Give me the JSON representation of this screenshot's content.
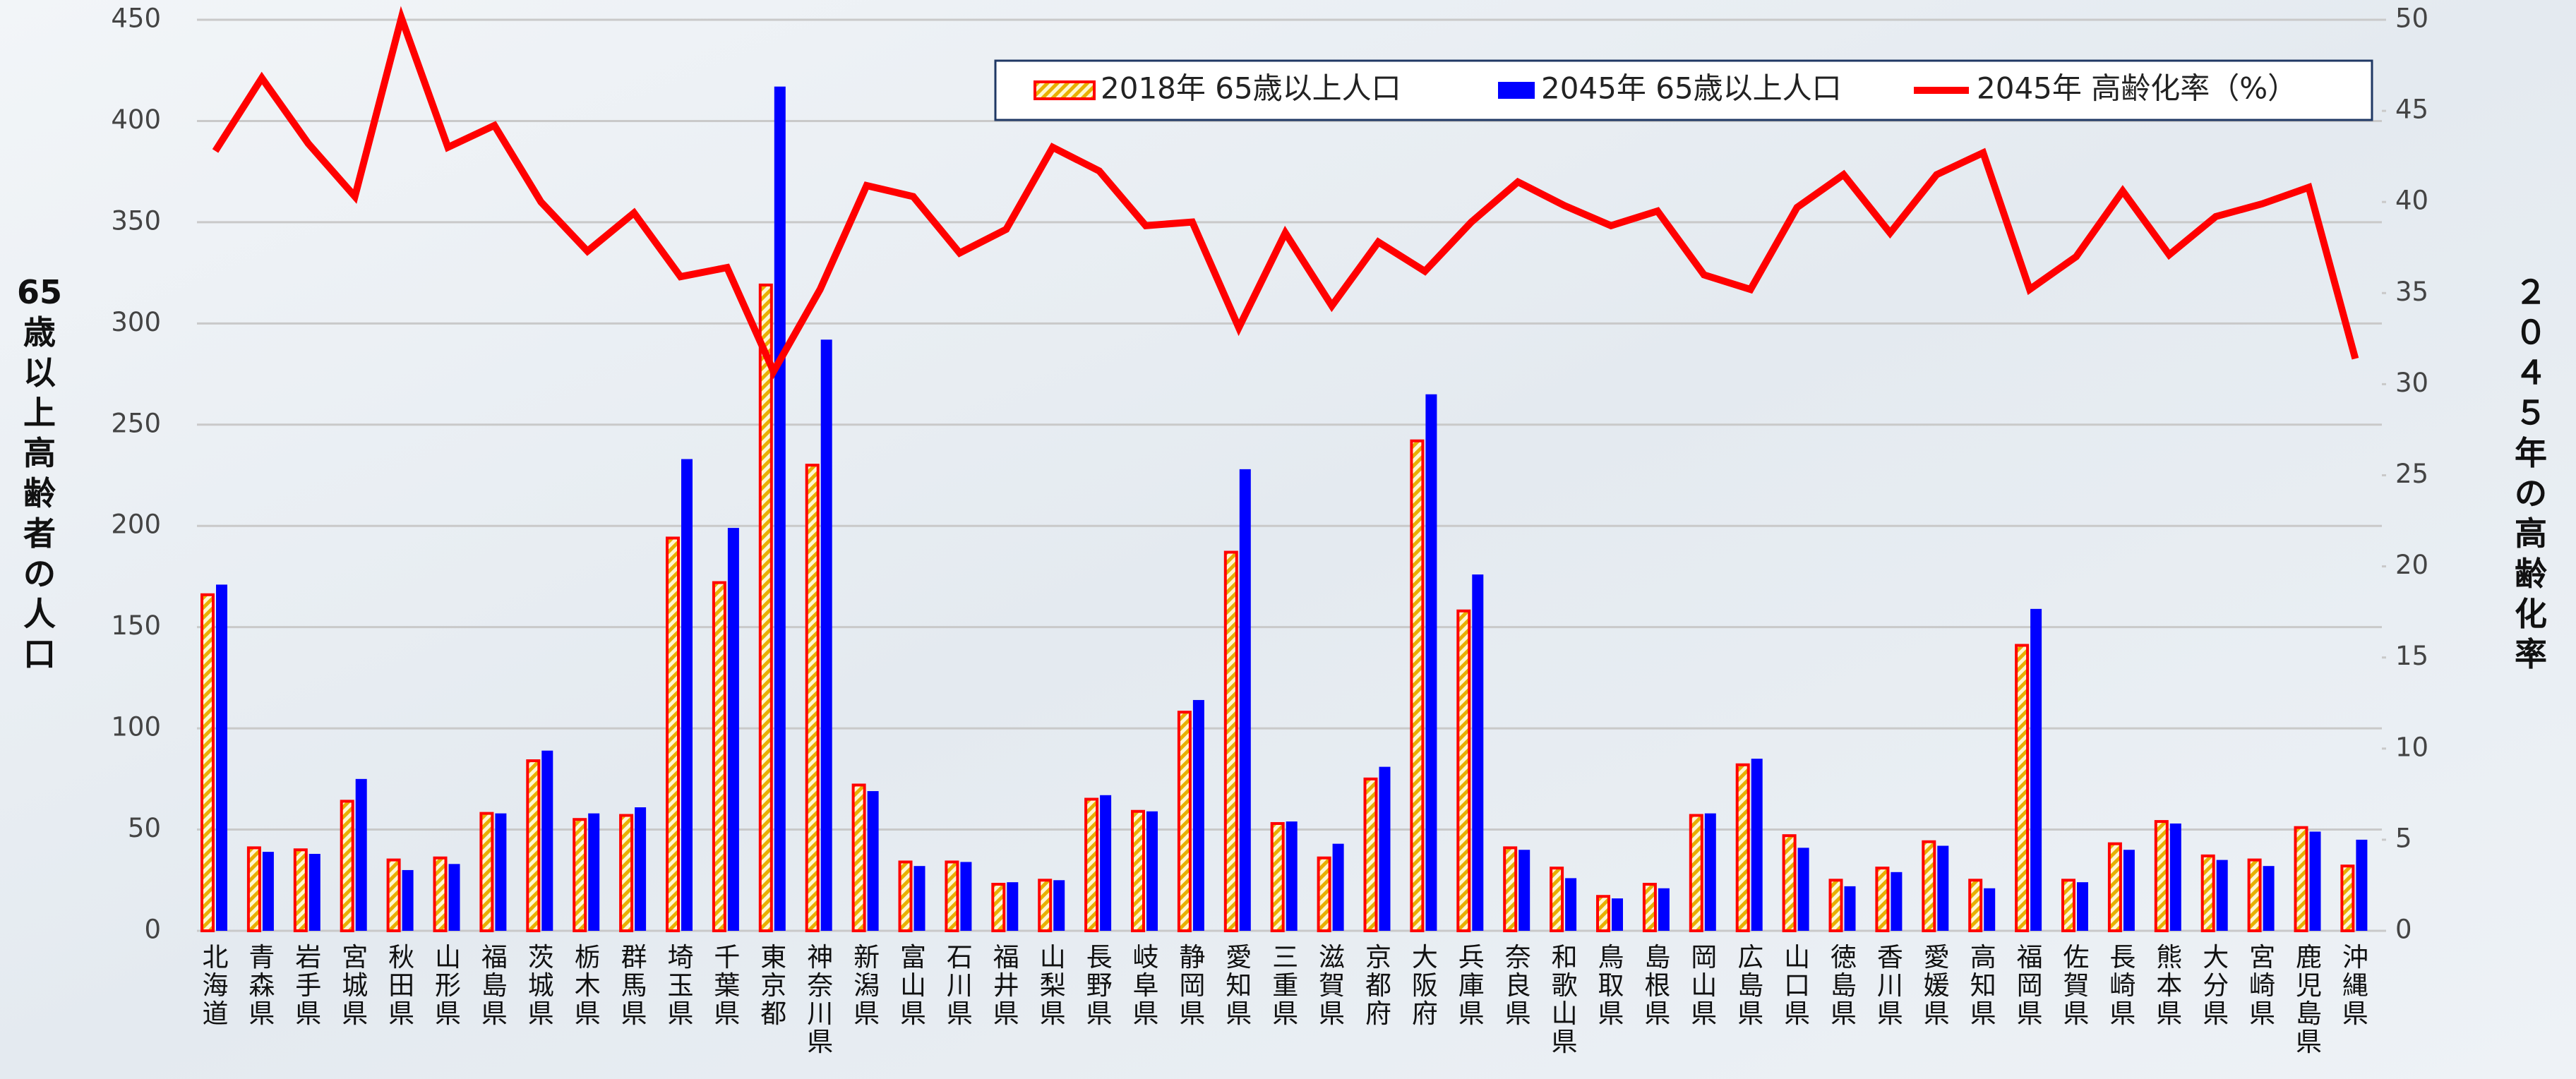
{
  "chart_data": {
    "type": "bar",
    "y_label": "65歳以上高齢者の人口",
    "y2_label": "２０４５年の高齢化率",
    "categories": [
      "北海道",
      "青森県",
      "岩手県",
      "宮城県",
      "秋田県",
      "山形県",
      "福島県",
      "茨城県",
      "栃木県",
      "群馬県",
      "埼玉県",
      "千葉県",
      "東京都",
      "神奈川県",
      "新潟県",
      "富山県",
      "石川県",
      "福井県",
      "山梨県",
      "長野県",
      "岐阜県",
      "静岡県",
      "愛知県",
      "三重県",
      "滋賀県",
      "京都府",
      "大阪府",
      "兵庫県",
      "奈良県",
      "和歌山県",
      "鳥取県",
      "島根県",
      "岡山県",
      "広島県",
      "山口県",
      "徳島県",
      "香川県",
      "愛媛県",
      "高知県",
      "福岡県",
      "佐賀県",
      "長崎県",
      "熊本県",
      "大分県",
      "宮崎県",
      "鹿児島県",
      "沖縄県"
    ],
    "series": [
      {
        "name": "2018年 65歳以上人口",
        "color": "#ff0000",
        "values": [
          166,
          41,
          40,
          64,
          35,
          36,
          58,
          84,
          55,
          57,
          194,
          172,
          319,
          230,
          72,
          34,
          34,
          23,
          25,
          65,
          59,
          108,
          187,
          53,
          36,
          75,
          242,
          158,
          41,
          31,
          17,
          23,
          57,
          82,
          47,
          25,
          31,
          44,
          25,
          141,
          25,
          43,
          54,
          37,
          35,
          51,
          32
        ]
      },
      {
        "name": "2045年 65歳以上人口",
        "color": "#0000ff",
        "values": [
          171,
          39,
          38,
          75,
          30,
          33,
          58,
          89,
          58,
          61,
          233,
          199,
          417,
          292,
          69,
          32,
          34,
          24,
          25,
          67,
          59,
          114,
          228,
          54,
          43,
          81,
          265,
          176,
          40,
          26,
          16,
          21,
          58,
          85,
          41,
          22,
          29,
          42,
          21,
          159,
          24,
          40,
          53,
          35,
          32,
          49,
          45
        ]
      },
      {
        "name": "2045年 高齢化率（%）",
        "color": "#ff0000",
        "type": "line",
        "axis": "y2",
        "values": [
          42.8,
          46.8,
          43.2,
          40.3,
          50.1,
          43.0,
          44.2,
          40.0,
          37.3,
          39.4,
          35.9,
          36.4,
          30.7,
          35.2,
          40.9,
          40.3,
          37.2,
          38.5,
          43.0,
          41.7,
          38.7,
          38.9,
          33.1,
          38.3,
          34.3,
          37.8,
          36.2,
          38.9,
          41.1,
          39.8,
          38.7,
          39.5,
          36.0,
          35.2,
          39.7,
          41.5,
          38.3,
          41.5,
          42.7,
          35.2,
          37.0,
          40.6,
          37.1,
          39.2,
          39.9,
          40.8,
          31.4
        ]
      }
    ],
    "ylim": [
      0,
      450
    ],
    "yticks": [
      0,
      50,
      100,
      150,
      200,
      250,
      300,
      350,
      400,
      450
    ],
    "y2lim": [
      0,
      50
    ],
    "y2ticks": [
      0,
      5,
      10,
      15,
      20,
      25,
      30,
      35,
      40,
      45,
      50
    ],
    "grid": true
  }
}
